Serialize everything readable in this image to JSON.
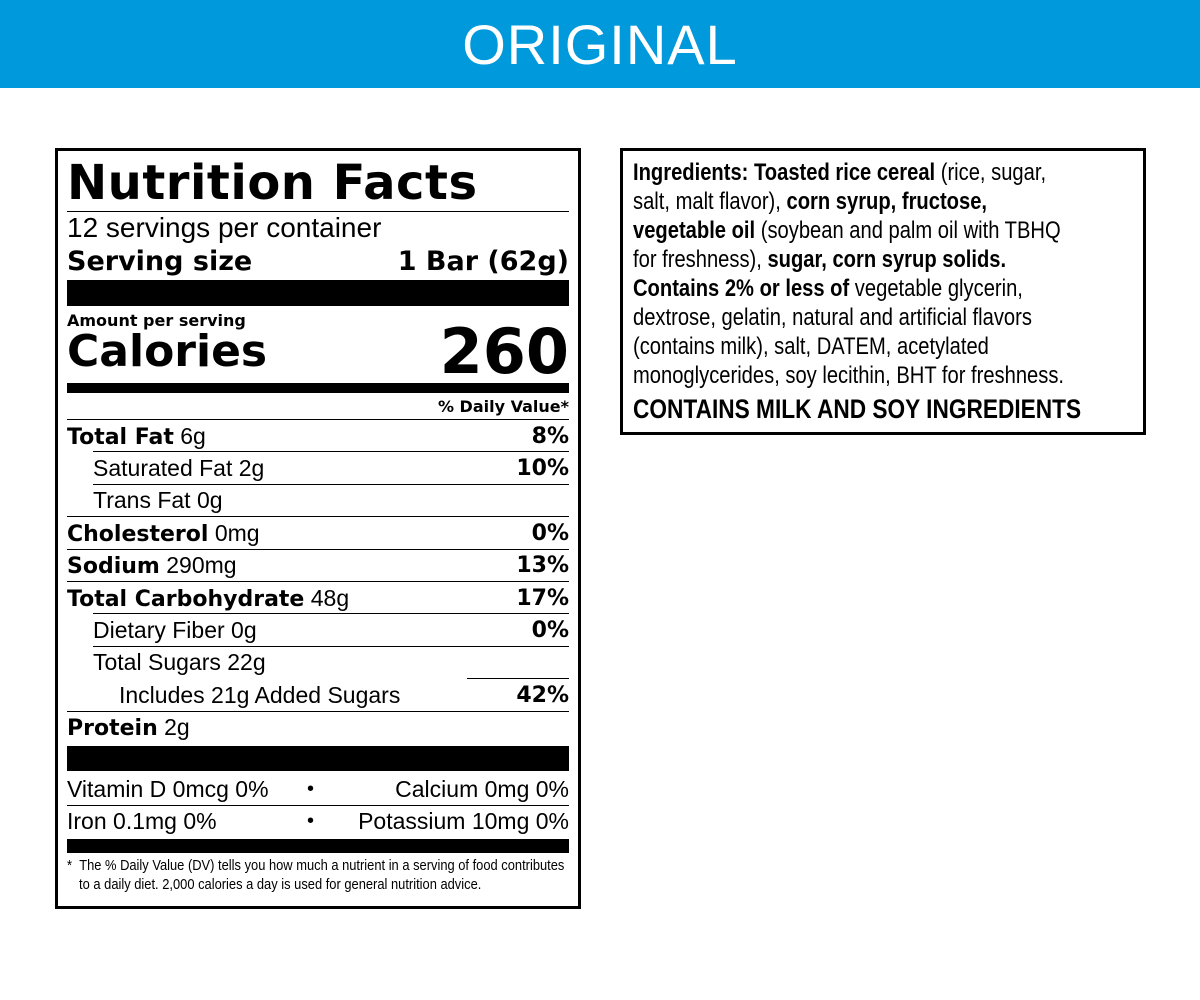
{
  "banner": {
    "title": "ORIGINAL",
    "color": "#0099dc"
  },
  "nutrition": {
    "title": "Nutrition Facts",
    "servings_per_container": "12 servings per container",
    "serving_size_label": "Serving size",
    "serving_size_value": "1 Bar (62g)",
    "amount_per_serving": "Amount per serving",
    "calories_label": "Calories",
    "calories_value": "260",
    "dv_header": "% Daily Value*",
    "nutrients": [
      {
        "name": "Total Fat",
        "amount": "6g",
        "dv": "8%",
        "bold": true,
        "indent": 0
      },
      {
        "name": "Saturated Fat",
        "amount": "2g",
        "dv": "10%",
        "bold": false,
        "indent": 1
      },
      {
        "name": "Trans Fat",
        "amount": "0g",
        "dv": "",
        "bold": false,
        "indent": 1
      },
      {
        "name": "Cholesterol",
        "amount": "0mg",
        "dv": "0%",
        "bold": true,
        "indent": 0
      },
      {
        "name": "Sodium",
        "amount": "290mg",
        "dv": "13%",
        "bold": true,
        "indent": 0
      },
      {
        "name": "Total Carbohydrate",
        "amount": "48g",
        "dv": "17%",
        "bold": true,
        "indent": 0
      },
      {
        "name": "Dietary Fiber",
        "amount": "0g",
        "dv": "0%",
        "bold": false,
        "indent": 1
      },
      {
        "name": "Total Sugars",
        "amount": "22g",
        "dv": "",
        "bold": false,
        "indent": 1
      },
      {
        "name": "Includes 21g Added Sugars",
        "amount": "",
        "dv": "42%",
        "bold": false,
        "indent": 2
      },
      {
        "name": "Protein",
        "amount": "2g",
        "dv": "",
        "bold": true,
        "indent": 0
      }
    ],
    "vitamins": [
      {
        "left": "Vitamin D 0mcg 0%",
        "right": "Calcium 0mg 0%"
      },
      {
        "left": "Iron 0.1mg 0%",
        "right": "Potassium 10mg 0%"
      }
    ],
    "footnote_line1": "The % Daily Value (DV) tells you how much a nutrient in a serving of food contributes",
    "footnote_line2": "to a daily diet. 2,000 calories a day is used for general nutrition advice.",
    "footnote_mark": "*"
  },
  "ingredients": {
    "lines": [
      [
        {
          "t": "Ingredients: Toasted rice cereal",
          "b": true
        },
        {
          "t": " (rice, sugar,",
          "b": false
        }
      ],
      [
        {
          "t": "salt, malt flavor), ",
          "b": false
        },
        {
          "t": "corn syrup, fructose,",
          "b": true
        }
      ],
      [
        {
          "t": "vegetable oil",
          "b": true
        },
        {
          "t": " (soybean and palm oil with TBHQ",
          "b": false
        }
      ],
      [
        {
          "t": "for freshness), ",
          "b": false
        },
        {
          "t": "sugar, corn syrup solids.",
          "b": true
        }
      ],
      [
        {
          "t": "Contains 2% or less of",
          "b": true
        },
        {
          "t": " vegetable glycerin,",
          "b": false
        }
      ],
      [
        {
          "t": "dextrose, gelatin, natural and artificial flavors",
          "b": false
        }
      ],
      [
        {
          "t": "(contains milk), salt, DATEM, acetylated",
          "b": false
        }
      ],
      [
        {
          "t": "monoglycerides, soy lecithin, BHT for freshness.",
          "b": false
        }
      ]
    ],
    "allergen": "CONTAINS MILK AND SOY INGREDIENTS"
  }
}
